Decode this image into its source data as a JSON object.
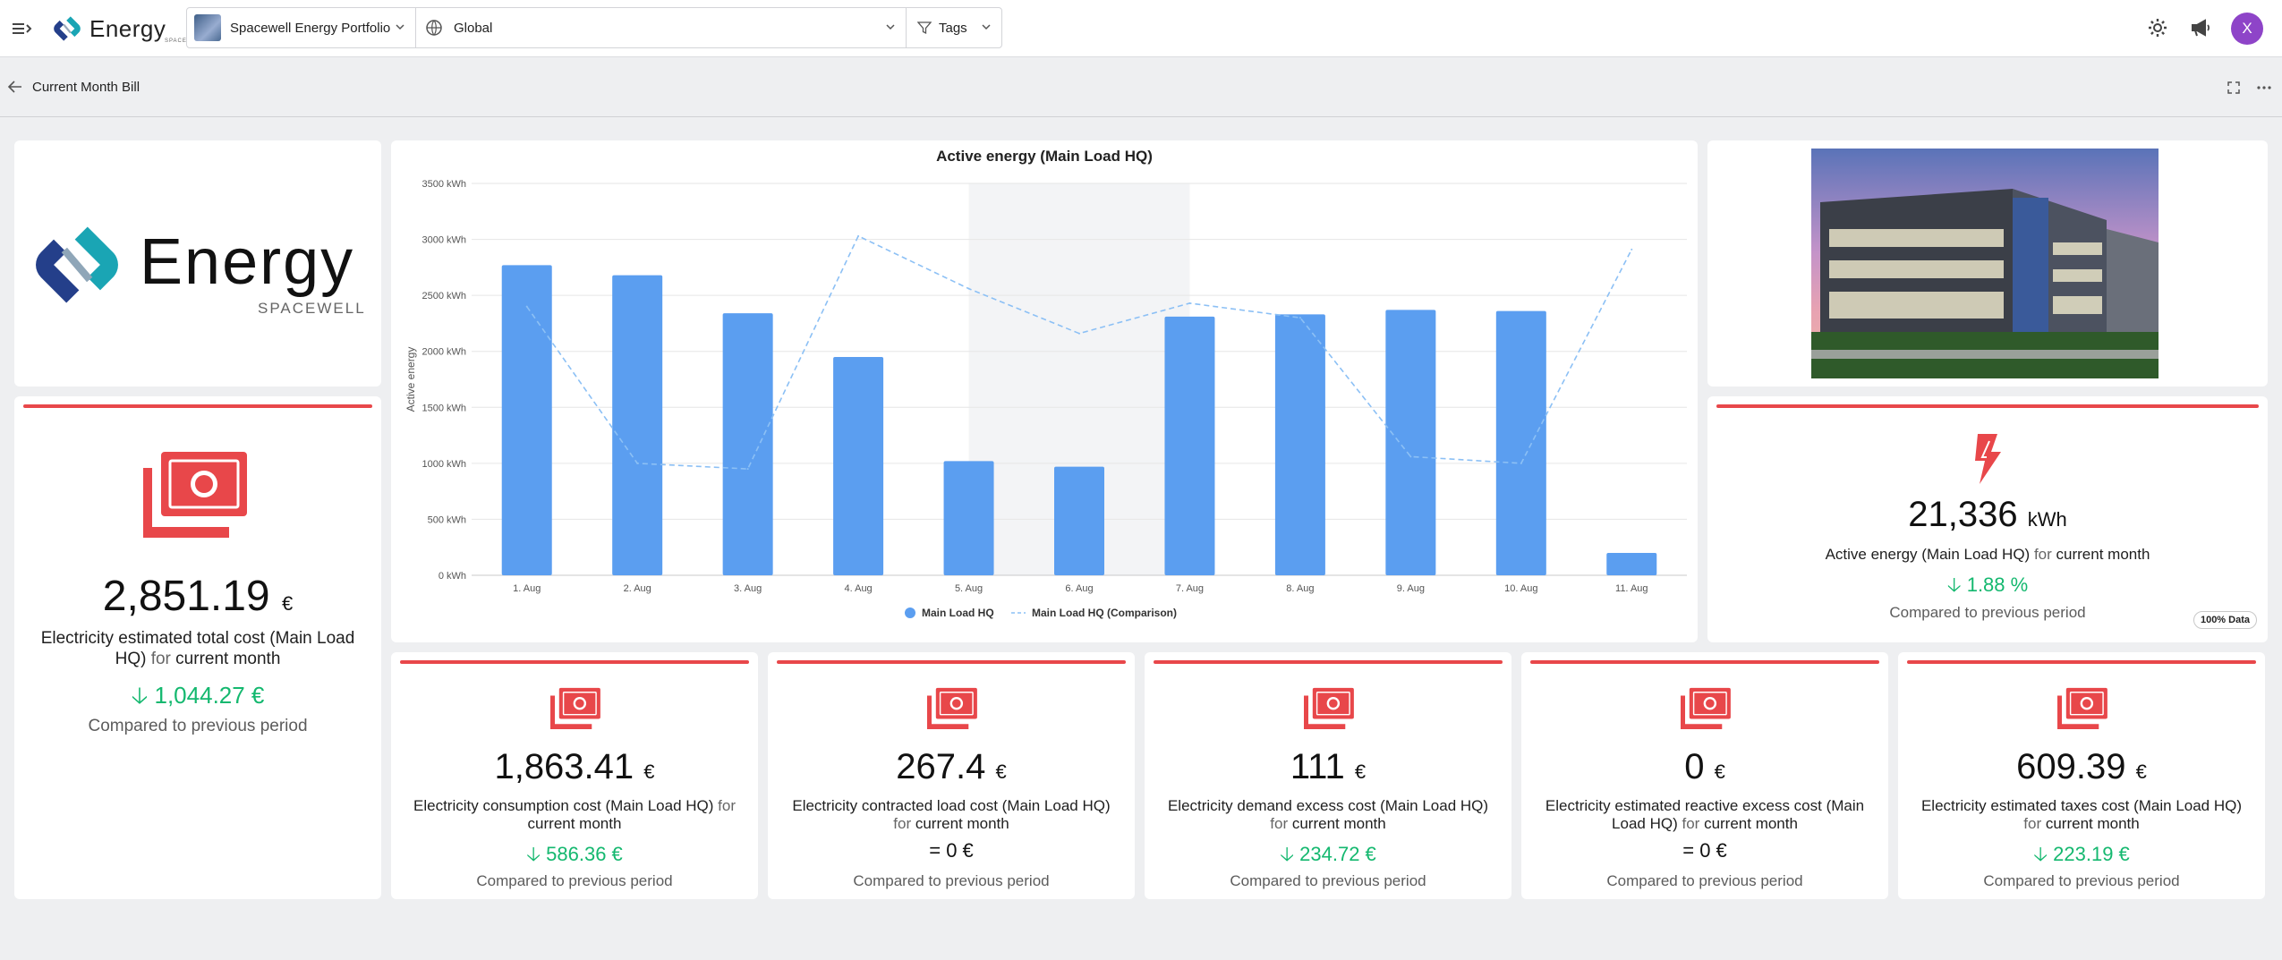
{
  "app": {
    "name": "Energy",
    "brand_sub": "SPACEWELL"
  },
  "topbar": {
    "portfolio": "Spacewell Energy Portfolio",
    "scope": "Global",
    "tags_label": "Tags",
    "avatar_initial": "X"
  },
  "page": {
    "title": "Current Month Bill"
  },
  "logo_card": {
    "word": "Energy",
    "sub": "SPACEWELL"
  },
  "total_cost": {
    "value": "2,851.19",
    "unit": "€",
    "desc_main": "Electricity estimated total cost (Main Load HQ)",
    "desc_for": "for",
    "desc_period": "current month",
    "delta": "1,044.27 €",
    "compared": "Compared to previous period"
  },
  "energy_kpi": {
    "value": "21,336",
    "unit": "kWh",
    "desc_main": "Active energy (Main Load HQ)",
    "desc_for": "for",
    "desc_period": "current month",
    "delta": "1.88 %",
    "compared": "Compared to previous period",
    "badge": "100% Data"
  },
  "cost_cards": [
    {
      "value": "1,863.41",
      "unit": "€",
      "desc_main": "Electricity consumption cost (Main Load HQ)",
      "desc_for": "for",
      "desc_period": "current month",
      "delta": "586.36 €",
      "direction": "down",
      "compared": "Compared to previous period"
    },
    {
      "value": "267.4",
      "unit": "€",
      "desc_main": "Electricity contracted load cost (Main Load HQ)",
      "desc_for": "for",
      "desc_period": "current month",
      "delta": "0 €",
      "direction": "equal",
      "compared": "Compared to previous period"
    },
    {
      "value": "111",
      "unit": "€",
      "desc_main": "Electricity demand excess cost (Main Load HQ)",
      "desc_for": "for",
      "desc_period": "current month",
      "delta": "234.72 €",
      "direction": "down",
      "compared": "Compared to previous period"
    },
    {
      "value": "0",
      "unit": "€",
      "desc_main": "Electricity estimated reactive excess cost (Main Load HQ)",
      "desc_for": "for",
      "desc_period": "current month",
      "delta": "0 €",
      "direction": "equal",
      "compared": "Compared to previous period"
    },
    {
      "value": "609.39",
      "unit": "€",
      "desc_main": "Electricity estimated taxes cost (Main Load HQ)",
      "desc_for": "for",
      "desc_period": "current month",
      "delta": "223.19 €",
      "direction": "down",
      "compared": "Compared to previous period"
    }
  ],
  "colors": {
    "accent_red": "#e8474a",
    "bar_blue": "#5b9ef0",
    "positive_green": "#14b86f",
    "avatar_purple": "#8e44c8"
  },
  "chart_data": {
    "type": "bar",
    "title": "Active energy (Main Load HQ)",
    "ylabel": "Active energy",
    "xlabel": "",
    "ylim": [
      0,
      3500
    ],
    "yticks": [
      "0 kWh",
      "500 kWh",
      "1000 kWh",
      "1500 kWh",
      "2000 kWh",
      "2500 kWh",
      "3000 kWh",
      "3500 kWh"
    ],
    "categories": [
      "1. Aug",
      "2. Aug",
      "3. Aug",
      "4. Aug",
      "5. Aug",
      "6. Aug",
      "7. Aug",
      "8. Aug",
      "9. Aug",
      "10. Aug",
      "11. Aug"
    ],
    "highlight_range": [
      "5. Aug",
      "6. Aug"
    ],
    "grid": true,
    "legend": "bottom",
    "series": [
      {
        "name": "Main Load HQ",
        "kind": "bar",
        "values": [
          2770,
          2680,
          2340,
          1950,
          1020,
          970,
          2310,
          2330,
          2370,
          2360,
          200
        ]
      },
      {
        "name": "Main Load HQ (Comparison)",
        "kind": "dashed-line",
        "values": [
          2400,
          1000,
          950,
          3030,
          2560,
          2160,
          2430,
          2300,
          1060,
          1000,
          2910
        ]
      }
    ]
  }
}
